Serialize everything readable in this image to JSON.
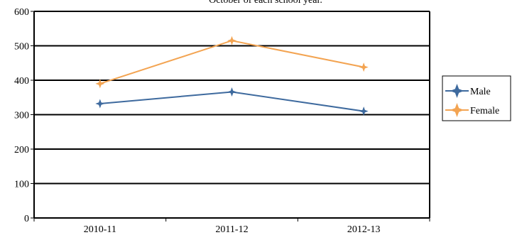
{
  "chart_data": {
    "type": "line",
    "title": "October of each school year.",
    "xlabel": "",
    "ylabel": "",
    "categories": [
      "2010-11",
      "2011-12",
      "2012-13"
    ],
    "ylim": [
      0,
      600
    ],
    "yticks": [
      0,
      100,
      200,
      300,
      400,
      500,
      600
    ],
    "grid": true,
    "legend": "right",
    "series": [
      {
        "name": "Male",
        "color": "#3E6A9E",
        "values": [
          332,
          366,
          310
        ]
      },
      {
        "name": "Female",
        "color": "#F3A452",
        "values": [
          390,
          515,
          438
        ]
      }
    ]
  }
}
